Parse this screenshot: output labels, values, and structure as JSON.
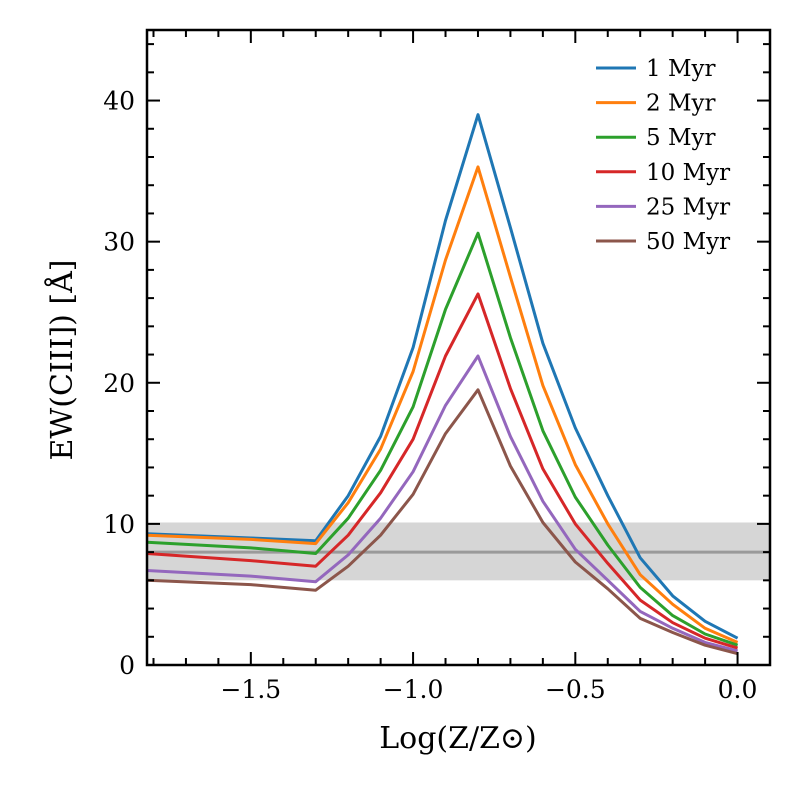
{
  "chart_data": {
    "type": "line",
    "title": "",
    "xlabel": "Log(Z/Z⊙)",
    "ylabel": "EW(CIII]) [Å]",
    "xlim": [
      -1.82,
      0.1
    ],
    "ylim": [
      0,
      45
    ],
    "x_ticks": [
      -1.5,
      -1.0,
      -0.5,
      0.0
    ],
    "x_tick_labels": [
      "−1.5",
      "−1.0",
      "−0.5",
      "0.0"
    ],
    "y_ticks": [
      0,
      10,
      20,
      30,
      40
    ],
    "y_tick_labels": [
      "0",
      "10",
      "20",
      "30",
      "40"
    ],
    "legend_position": "top-right",
    "band": {
      "ymin": 6.0,
      "ymax": 10.1,
      "line": 8.0,
      "color": "#d6d6d6",
      "line_color": "#9a9a9a"
    },
    "x": [
      -1.82,
      -1.5,
      -1.3,
      -1.2,
      -1.1,
      -1.0,
      -0.9,
      -0.8,
      -0.7,
      -0.6,
      -0.5,
      -0.4,
      -0.3,
      -0.2,
      -0.1,
      0.0
    ],
    "series": [
      {
        "name": "1 Myr",
        "color": "#1f77b4",
        "values": [
          9.3,
          9.0,
          8.8,
          12.0,
          16.2,
          22.5,
          31.5,
          39.0,
          31.0,
          22.8,
          16.8,
          12.0,
          7.6,
          4.9,
          3.1,
          1.9
        ]
      },
      {
        "name": "2 Myr",
        "color": "#ff7f0e",
        "values": [
          9.2,
          8.9,
          8.6,
          11.5,
          15.3,
          20.8,
          28.7,
          35.3,
          27.5,
          19.8,
          14.2,
          10.0,
          6.4,
          4.3,
          2.6,
          1.6
        ]
      },
      {
        "name": "5 Myr",
        "color": "#2ca02c",
        "values": [
          8.7,
          8.3,
          7.9,
          10.4,
          13.8,
          18.3,
          25.2,
          30.6,
          23.2,
          16.6,
          11.9,
          8.5,
          5.5,
          3.5,
          2.2,
          1.4
        ]
      },
      {
        "name": "10 Myr",
        "color": "#d62728",
        "values": [
          7.9,
          7.4,
          7.0,
          9.2,
          12.2,
          16.0,
          21.9,
          26.3,
          19.6,
          13.9,
          10.0,
          7.2,
          4.6,
          3.0,
          1.9,
          1.2
        ]
      },
      {
        "name": "25 Myr",
        "color": "#9467bd",
        "values": [
          6.7,
          6.3,
          5.9,
          7.8,
          10.4,
          13.7,
          18.4,
          21.9,
          16.2,
          11.6,
          8.2,
          6.0,
          3.8,
          2.6,
          1.6,
          1.0
        ]
      },
      {
        "name": "50 Myr",
        "color": "#8c564b",
        "values": [
          6.0,
          5.7,
          5.3,
          7.0,
          9.2,
          12.1,
          16.4,
          19.5,
          14.1,
          10.1,
          7.3,
          5.4,
          3.3,
          2.3,
          1.4,
          0.8
        ]
      }
    ]
  }
}
